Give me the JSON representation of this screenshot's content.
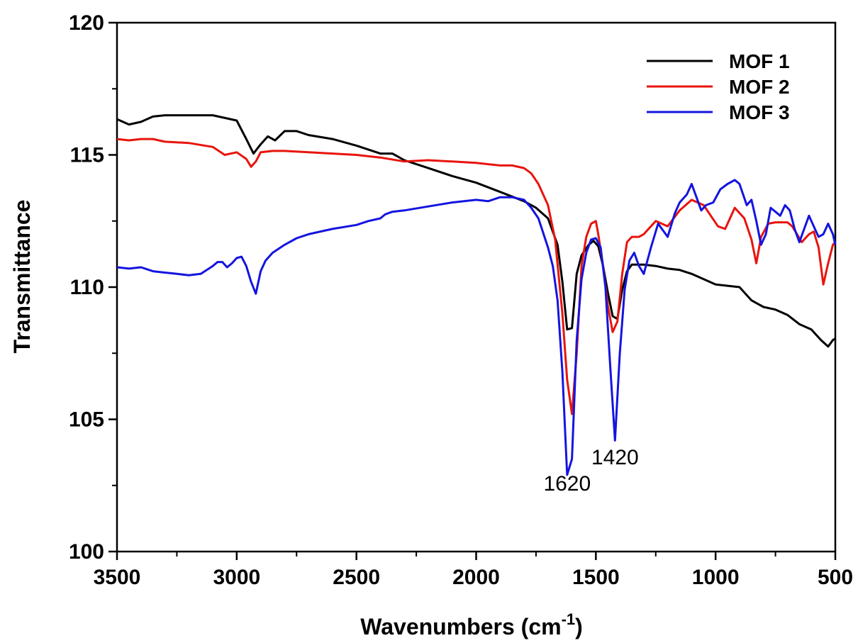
{
  "chart_data": {
    "type": "line",
    "xlabel": "Wavenumbers (cm",
    "xlabel_superscript": "-1",
    "xlabel_suffix": ")",
    "ylabel": "Transmittance",
    "xlim": [
      3500,
      500
    ],
    "ylim": [
      100,
      120
    ],
    "x_reversed": true,
    "grid": false,
    "legend_position": "top-right",
    "x_ticks": [
      "3500",
      "3000",
      "2500",
      "2000",
      "1500",
      "1000",
      "500"
    ],
    "x_tick_values": [
      3500,
      3000,
      2500,
      2000,
      1500,
      1000,
      500
    ],
    "y_ticks": [
      "100",
      "105",
      "110",
      "115",
      "120"
    ],
    "y_tick_values": [
      100,
      105,
      110,
      115,
      120
    ],
    "annotations": [
      {
        "text": "1620",
        "x": 1620,
        "y": 102.3
      },
      {
        "text": "1420",
        "x": 1420,
        "y": 103.3
      }
    ],
    "series": [
      {
        "name": "MOF 1",
        "color": "#000000",
        "points": [
          [
            3500,
            116.35
          ],
          [
            3450,
            116.15
          ],
          [
            3400,
            116.25
          ],
          [
            3350,
            116.45
          ],
          [
            3300,
            116.5
          ],
          [
            3200,
            116.5
          ],
          [
            3100,
            116.5
          ],
          [
            3000,
            116.3
          ],
          [
            2960,
            115.6
          ],
          [
            2930,
            115.05
          ],
          [
            2900,
            115.4
          ],
          [
            2870,
            115.7
          ],
          [
            2840,
            115.55
          ],
          [
            2800,
            115.9
          ],
          [
            2750,
            115.9
          ],
          [
            2700,
            115.75
          ],
          [
            2600,
            115.6
          ],
          [
            2500,
            115.35
          ],
          [
            2400,
            115.05
          ],
          [
            2350,
            115.05
          ],
          [
            2300,
            114.8
          ],
          [
            2200,
            114.5
          ],
          [
            2100,
            114.2
          ],
          [
            2000,
            113.95
          ],
          [
            1900,
            113.6
          ],
          [
            1800,
            113.25
          ],
          [
            1750,
            113.0
          ],
          [
            1700,
            112.6
          ],
          [
            1660,
            111.6
          ],
          [
            1640,
            110.2
          ],
          [
            1620,
            108.4
          ],
          [
            1600,
            108.45
          ],
          [
            1580,
            110.5
          ],
          [
            1560,
            111.2
          ],
          [
            1530,
            111.6
          ],
          [
            1510,
            111.75
          ],
          [
            1490,
            111.55
          ],
          [
            1470,
            110.8
          ],
          [
            1450,
            109.8
          ],
          [
            1430,
            108.9
          ],
          [
            1410,
            108.8
          ],
          [
            1390,
            109.9
          ],
          [
            1370,
            110.6
          ],
          [
            1350,
            110.85
          ],
          [
            1300,
            110.85
          ],
          [
            1250,
            110.8
          ],
          [
            1200,
            110.7
          ],
          [
            1150,
            110.65
          ],
          [
            1100,
            110.5
          ],
          [
            1050,
            110.3
          ],
          [
            1000,
            110.1
          ],
          [
            950,
            110.05
          ],
          [
            900,
            110.0
          ],
          [
            850,
            109.5
          ],
          [
            800,
            109.25
          ],
          [
            750,
            109.15
          ],
          [
            700,
            108.95
          ],
          [
            650,
            108.6
          ],
          [
            600,
            108.4
          ],
          [
            560,
            108.0
          ],
          [
            530,
            107.75
          ],
          [
            510,
            108.0
          ],
          [
            500,
            108.05
          ]
        ]
      },
      {
        "name": "MOF 2",
        "color": "#e8140d",
        "points": [
          [
            3500,
            115.6
          ],
          [
            3450,
            115.55
          ],
          [
            3400,
            115.6
          ],
          [
            3350,
            115.6
          ],
          [
            3300,
            115.5
          ],
          [
            3200,
            115.45
          ],
          [
            3100,
            115.3
          ],
          [
            3050,
            115.0
          ],
          [
            3000,
            115.1
          ],
          [
            2960,
            114.85
          ],
          [
            2940,
            114.55
          ],
          [
            2920,
            114.75
          ],
          [
            2900,
            115.1
          ],
          [
            2850,
            115.15
          ],
          [
            2800,
            115.15
          ],
          [
            2700,
            115.1
          ],
          [
            2600,
            115.05
          ],
          [
            2500,
            115.0
          ],
          [
            2400,
            114.9
          ],
          [
            2300,
            114.75
          ],
          [
            2200,
            114.8
          ],
          [
            2100,
            114.75
          ],
          [
            2000,
            114.7
          ],
          [
            1950,
            114.65
          ],
          [
            1900,
            114.6
          ],
          [
            1850,
            114.6
          ],
          [
            1800,
            114.5
          ],
          [
            1770,
            114.3
          ],
          [
            1740,
            113.9
          ],
          [
            1700,
            113.1
          ],
          [
            1670,
            111.8
          ],
          [
            1640,
            109.0
          ],
          [
            1620,
            106.5
          ],
          [
            1600,
            105.2
          ],
          [
            1580,
            107.5
          ],
          [
            1560,
            110.8
          ],
          [
            1540,
            111.9
          ],
          [
            1520,
            112.4
          ],
          [
            1500,
            112.5
          ],
          [
            1490,
            112.0
          ],
          [
            1470,
            110.8
          ],
          [
            1450,
            109.3
          ],
          [
            1430,
            108.3
          ],
          [
            1410,
            108.7
          ],
          [
            1390,
            110.5
          ],
          [
            1370,
            111.7
          ],
          [
            1350,
            111.9
          ],
          [
            1320,
            111.9
          ],
          [
            1300,
            112.0
          ],
          [
            1280,
            112.2
          ],
          [
            1250,
            112.5
          ],
          [
            1200,
            112.3
          ],
          [
            1150,
            112.9
          ],
          [
            1100,
            113.3
          ],
          [
            1050,
            113.1
          ],
          [
            1020,
            112.7
          ],
          [
            990,
            112.3
          ],
          [
            960,
            112.2
          ],
          [
            920,
            113.0
          ],
          [
            880,
            112.6
          ],
          [
            850,
            111.8
          ],
          [
            830,
            110.9
          ],
          [
            810,
            111.9
          ],
          [
            780,
            112.4
          ],
          [
            750,
            112.45
          ],
          [
            700,
            112.45
          ],
          [
            680,
            112.3
          ],
          [
            660,
            112.0
          ],
          [
            640,
            111.7
          ],
          [
            610,
            112.0
          ],
          [
            590,
            112.1
          ],
          [
            570,
            111.5
          ],
          [
            550,
            110.1
          ],
          [
            530,
            110.9
          ],
          [
            510,
            111.6
          ],
          [
            500,
            111.7
          ]
        ]
      },
      {
        "name": "MOF 3",
        "color": "#1414e0",
        "points": [
          [
            3500,
            110.75
          ],
          [
            3450,
            110.7
          ],
          [
            3400,
            110.75
          ],
          [
            3350,
            110.6
          ],
          [
            3300,
            110.55
          ],
          [
            3250,
            110.5
          ],
          [
            3200,
            110.45
          ],
          [
            3150,
            110.5
          ],
          [
            3100,
            110.8
          ],
          [
            3080,
            110.95
          ],
          [
            3060,
            110.95
          ],
          [
            3040,
            110.75
          ],
          [
            3020,
            110.9
          ],
          [
            3000,
            111.1
          ],
          [
            2980,
            111.15
          ],
          [
            2960,
            110.8
          ],
          [
            2940,
            110.2
          ],
          [
            2920,
            109.75
          ],
          [
            2900,
            110.6
          ],
          [
            2880,
            111.0
          ],
          [
            2850,
            111.3
          ],
          [
            2800,
            111.6
          ],
          [
            2750,
            111.85
          ],
          [
            2700,
            112.0
          ],
          [
            2600,
            112.2
          ],
          [
            2500,
            112.35
          ],
          [
            2450,
            112.5
          ],
          [
            2400,
            112.6
          ],
          [
            2380,
            112.75
          ],
          [
            2350,
            112.85
          ],
          [
            2300,
            112.9
          ],
          [
            2200,
            113.05
          ],
          [
            2100,
            113.2
          ],
          [
            2000,
            113.3
          ],
          [
            1950,
            113.25
          ],
          [
            1900,
            113.4
          ],
          [
            1850,
            113.4
          ],
          [
            1800,
            113.3
          ],
          [
            1770,
            113.0
          ],
          [
            1740,
            112.6
          ],
          [
            1700,
            111.5
          ],
          [
            1680,
            110.8
          ],
          [
            1660,
            109.5
          ],
          [
            1640,
            106.8
          ],
          [
            1620,
            102.9
          ],
          [
            1600,
            103.5
          ],
          [
            1580,
            108.0
          ],
          [
            1560,
            110.3
          ],
          [
            1540,
            111.3
          ],
          [
            1520,
            111.8
          ],
          [
            1500,
            111.85
          ],
          [
            1480,
            111.5
          ],
          [
            1460,
            110.0
          ],
          [
            1440,
            107.0
          ],
          [
            1420,
            104.2
          ],
          [
            1400,
            107.5
          ],
          [
            1380,
            109.9
          ],
          [
            1360,
            111.0
          ],
          [
            1340,
            111.3
          ],
          [
            1320,
            110.8
          ],
          [
            1300,
            110.5
          ],
          [
            1270,
            111.5
          ],
          [
            1240,
            112.4
          ],
          [
            1200,
            111.9
          ],
          [
            1170,
            112.8
          ],
          [
            1150,
            113.2
          ],
          [
            1120,
            113.5
          ],
          [
            1100,
            113.9
          ],
          [
            1080,
            113.4
          ],
          [
            1060,
            112.9
          ],
          [
            1040,
            113.1
          ],
          [
            1010,
            113.2
          ],
          [
            980,
            113.7
          ],
          [
            950,
            113.9
          ],
          [
            920,
            114.05
          ],
          [
            900,
            113.9
          ],
          [
            870,
            113.1
          ],
          [
            850,
            113.3
          ],
          [
            830,
            112.5
          ],
          [
            810,
            111.6
          ],
          [
            790,
            112.0
          ],
          [
            770,
            113.0
          ],
          [
            750,
            112.85
          ],
          [
            730,
            112.7
          ],
          [
            710,
            113.1
          ],
          [
            690,
            112.9
          ],
          [
            670,
            112.2
          ],
          [
            650,
            111.7
          ],
          [
            630,
            112.2
          ],
          [
            610,
            112.7
          ],
          [
            590,
            112.3
          ],
          [
            570,
            111.9
          ],
          [
            550,
            112.0
          ],
          [
            530,
            112.4
          ],
          [
            510,
            112.0
          ],
          [
            500,
            111.6
          ]
        ]
      }
    ]
  }
}
